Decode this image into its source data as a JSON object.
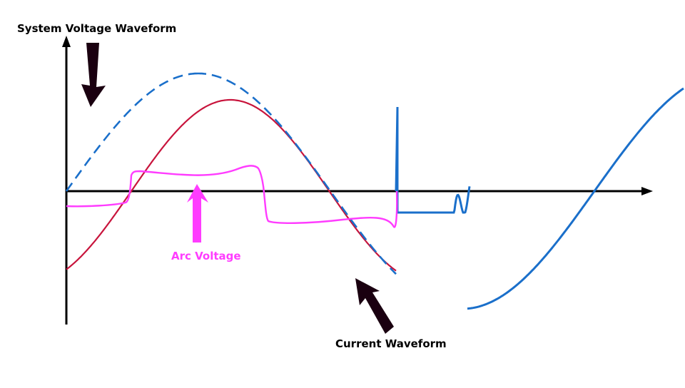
{
  "labels": {
    "system_voltage": "System Voltage Waveform",
    "arc_voltage": "Arc Voltage",
    "current": "Current Waveform"
  },
  "colors": {
    "system_voltage": "#1a6fca",
    "current": "#c8143c",
    "arc_voltage": "#ff3cff",
    "axes": "#000000",
    "current_arrow": "#1a0010",
    "arc_arrow": "#ff3cff"
  }
}
